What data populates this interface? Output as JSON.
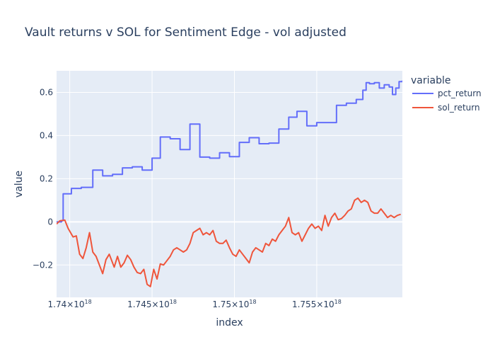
{
  "chart_data": {
    "type": "line",
    "title": "Vault returns v SOL for Sentiment Edge - vol adjusted",
    "xlabel": "index",
    "ylabel": "value",
    "legend_title": "variable",
    "legend_placement": "right",
    "grid": true,
    "xlim": [
      1.7392e+18,
      1.7602e+18
    ],
    "ylim": [
      -0.35,
      0.7
    ],
    "x_ticks": [
      {
        "value": 1.74e+18,
        "label": "1.74×10",
        "sup": "18"
      },
      {
        "value": 1.745e+18,
        "label": "1.745×10",
        "sup": "18"
      },
      {
        "value": 1.75e+18,
        "label": "1.75×10",
        "sup": "18"
      },
      {
        "value": 1.755e+18,
        "label": "1.755×10",
        "sup": "18"
      }
    ],
    "y_ticks": [
      {
        "value": -0.2,
        "label": "−0.2"
      },
      {
        "value": 0,
        "label": "0"
      },
      {
        "value": 0.2,
        "label": "0.2"
      },
      {
        "value": 0.4,
        "label": "0.4"
      },
      {
        "value": 0.6,
        "label": "0.6"
      }
    ],
    "series": [
      {
        "name": "pct_return",
        "color": "#636efa",
        "shape": "hv",
        "x": [
          1.7392e+18,
          1.7395e+18,
          1.7396e+18,
          1.7401e+18,
          1.7407e+18,
          1.7414e+18,
          1.742e+18,
          1.7426e+18,
          1.7432e+18,
          1.7438e+18,
          1.7444e+18,
          1.745e+18,
          1.7455e+18,
          1.7461e+18,
          1.7467e+18,
          1.7473e+18,
          1.7479e+18,
          1.7485e+18,
          1.7491e+18,
          1.7497e+18,
          1.7503e+18,
          1.7509e+18,
          1.7515e+18,
          1.7521e+18,
          1.7527e+18,
          1.7533e+18,
          1.7538e+18,
          1.7544e+18,
          1.755e+18,
          1.7556e+18,
          1.7562e+18,
          1.7568e+18,
          1.7574e+18,
          1.7578e+18,
          1.758e+18,
          1.7582e+18,
          1.7585e+18,
          1.7588e+18,
          1.7591e+18,
          1.7594e+18,
          1.7596e+18,
          1.7598e+18,
          1.76e+18,
          1.7602e+18
        ],
        "y": [
          0,
          0.005,
          0.13,
          0.155,
          0.16,
          0.24,
          0.213,
          0.22,
          0.25,
          0.255,
          0.24,
          0.295,
          0.393,
          0.385,
          0.335,
          0.453,
          0.3,
          0.295,
          0.32,
          0.302,
          0.368,
          0.39,
          0.362,
          0.365,
          0.43,
          0.485,
          0.512,
          0.445,
          0.46,
          0.46,
          0.54,
          0.55,
          0.567,
          0.61,
          0.645,
          0.64,
          0.645,
          0.62,
          0.635,
          0.625,
          0.59,
          0.62,
          0.65,
          0.655
        ]
      },
      {
        "name": "sol_return",
        "color": "#ef553b",
        "shape": "linear",
        "x": [
          1.7392e+18,
          1.7394e+18,
          1.7397e+18,
          1.7399e+18,
          1.7402e+18,
          1.7404e+18,
          1.7406e+18,
          1.7408e+18,
          1.741e+18,
          1.7412e+18,
          1.7414e+18,
          1.7416e+18,
          1.7418e+18,
          1.742e+18,
          1.7422e+18,
          1.7424e+18,
          1.7427e+18,
          1.7429e+18,
          1.7431e+18,
          1.7433e+18,
          1.7435e+18,
          1.7437e+18,
          1.7439e+18,
          1.7441e+18,
          1.7443e+18,
          1.7445e+18,
          1.7447e+18,
          1.7449e+18,
          1.7451e+18,
          1.7453e+18,
          1.7455e+18,
          1.7457e+18,
          1.7459e+18,
          1.7461e+18,
          1.7463e+18,
          1.7465e+18,
          1.7467e+18,
          1.7469e+18,
          1.7471e+18,
          1.7473e+18,
          1.7475e+18,
          1.7477e+18,
          1.7479e+18,
          1.7481e+18,
          1.7483e+18,
          1.7485e+18,
          1.7487e+18,
          1.7489e+18,
          1.7491e+18,
          1.7493e+18,
          1.7495e+18,
          1.7497e+18,
          1.7499e+18,
          1.7501e+18,
          1.7503e+18,
          1.7505e+18,
          1.7507e+18,
          1.7509e+18,
          1.7511e+18,
          1.7513e+18,
          1.7515e+18,
          1.7517e+18,
          1.7519e+18,
          1.7521e+18,
          1.7523e+18,
          1.7525e+18,
          1.7527e+18,
          1.7529e+18,
          1.7531e+18,
          1.7533e+18,
          1.7535e+18,
          1.7537e+18,
          1.7539e+18,
          1.7541e+18,
          1.7543e+18,
          1.7545e+18,
          1.7547e+18,
          1.7549e+18,
          1.7551e+18,
          1.7553e+18,
          1.7555e+18,
          1.7557e+18,
          1.7559e+18,
          1.7561e+18,
          1.7563e+18,
          1.7565e+18,
          1.7567e+18,
          1.7569e+18,
          1.7571e+18,
          1.7573e+18,
          1.7575e+18,
          1.7577e+18,
          1.7579e+18,
          1.7581e+18,
          1.7583e+18,
          1.7585e+18,
          1.7587e+18,
          1.7589e+18,
          1.7591e+18,
          1.7593e+18,
          1.7595e+18,
          1.7597e+18,
          1.7599e+18,
          1.7601e+18
        ],
        "y": [
          -0.01,
          0.005,
          0.008,
          -0.03,
          -0.07,
          -0.065,
          -0.15,
          -0.17,
          -0.12,
          -0.05,
          -0.14,
          -0.16,
          -0.2,
          -0.24,
          -0.175,
          -0.15,
          -0.21,
          -0.16,
          -0.21,
          -0.19,
          -0.155,
          -0.175,
          -0.21,
          -0.235,
          -0.24,
          -0.22,
          -0.29,
          -0.3,
          -0.22,
          -0.265,
          -0.195,
          -0.2,
          -0.18,
          -0.16,
          -0.13,
          -0.12,
          -0.13,
          -0.14,
          -0.13,
          -0.1,
          -0.05,
          -0.04,
          -0.03,
          -0.06,
          -0.05,
          -0.06,
          -0.04,
          -0.09,
          -0.1,
          -0.1,
          -0.085,
          -0.12,
          -0.15,
          -0.16,
          -0.13,
          -0.15,
          -0.17,
          -0.19,
          -0.14,
          -0.12,
          -0.13,
          -0.14,
          -0.1,
          -0.11,
          -0.08,
          -0.09,
          -0.06,
          -0.04,
          -0.02,
          0.02,
          -0.05,
          -0.06,
          -0.05,
          -0.09,
          -0.06,
          -0.03,
          -0.01,
          -0.03,
          -0.02,
          -0.04,
          0.03,
          -0.02,
          0.02,
          0.04,
          0.01,
          0.015,
          0.03,
          0.05,
          0.06,
          0.1,
          0.11,
          0.09,
          0.1,
          0.09,
          0.05,
          0.04,
          0.04,
          0.06,
          0.04,
          0.02,
          0.03,
          0.02,
          0.03,
          0.035
        ]
      }
    ]
  }
}
